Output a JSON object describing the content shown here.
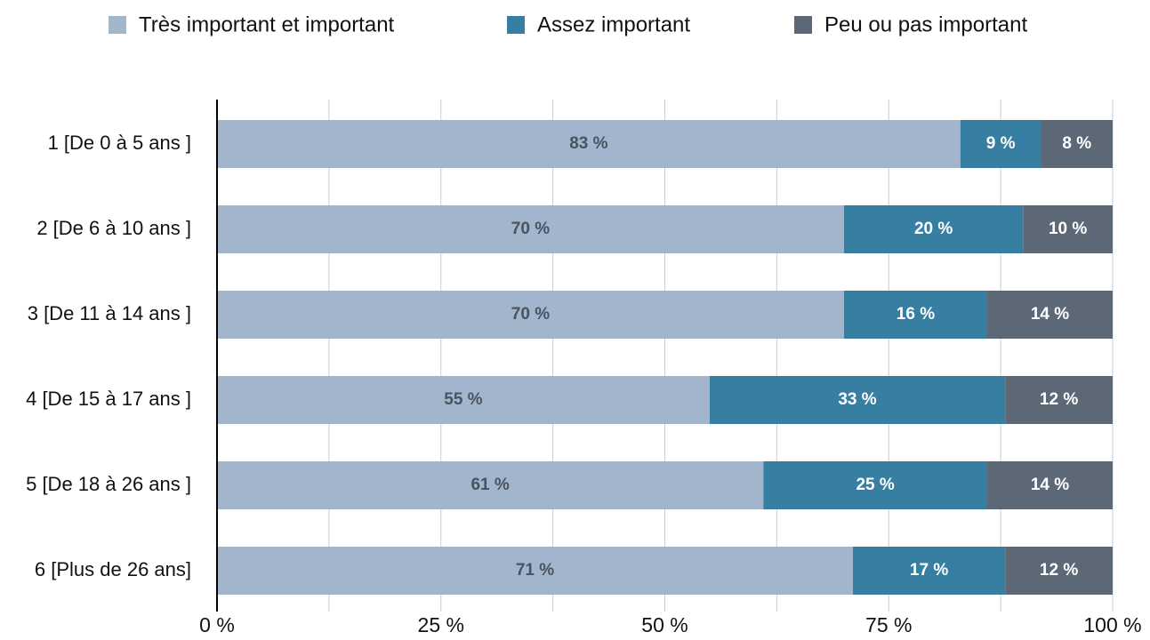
{
  "chart_data": {
    "type": "stacked_barh",
    "categories": [
      "1 [De 0 à 5 ans ]",
      "2 [De 6 à 10 ans ]",
      "3 [De 11 à 14 ans ]",
      "4 [De 15 à 17 ans ]",
      "5 [De 18 à 26 ans ]",
      "6 [Plus de 26 ans]"
    ],
    "series": [
      {
        "name": "Très important et important",
        "color": "#a3b5cc",
        "label_color": "#4a5260",
        "values": [
          83,
          70,
          70,
          55,
          61,
          71
        ],
        "value_labels": [
          "83 %",
          "70 %",
          "70 %",
          "55 %",
          "61 %",
          "71 %"
        ]
      },
      {
        "name": "Assez important",
        "color": "#367fa3",
        "label_color": "#ffffff",
        "values": [
          9,
          20,
          16,
          33,
          25,
          17
        ],
        "value_labels": [
          "9 %",
          "20 %",
          "16 %",
          "33 %",
          "25 %",
          "17 %"
        ]
      },
      {
        "name": "Peu ou pas important",
        "color": "#5d6877",
        "label_color": "#ffffff",
        "values": [
          8,
          10,
          14,
          12,
          14,
          12
        ],
        "value_labels": [
          "8 %",
          "10 %",
          "14 %",
          "12 %",
          "14 %",
          "12 %"
        ]
      }
    ],
    "xlim": [
      0,
      100
    ],
    "xticks": [
      {
        "value": 0,
        "label": "0 %"
      },
      {
        "value": 25,
        "label": "25 %"
      },
      {
        "value": 50,
        "label": "50 %"
      },
      {
        "value": 75,
        "label": "75 %"
      },
      {
        "value": 100,
        "label": "100 %"
      }
    ],
    "xminor": [
      12.5,
      37.5,
      62.5,
      87.5
    ],
    "grid": true,
    "legend": "top"
  }
}
